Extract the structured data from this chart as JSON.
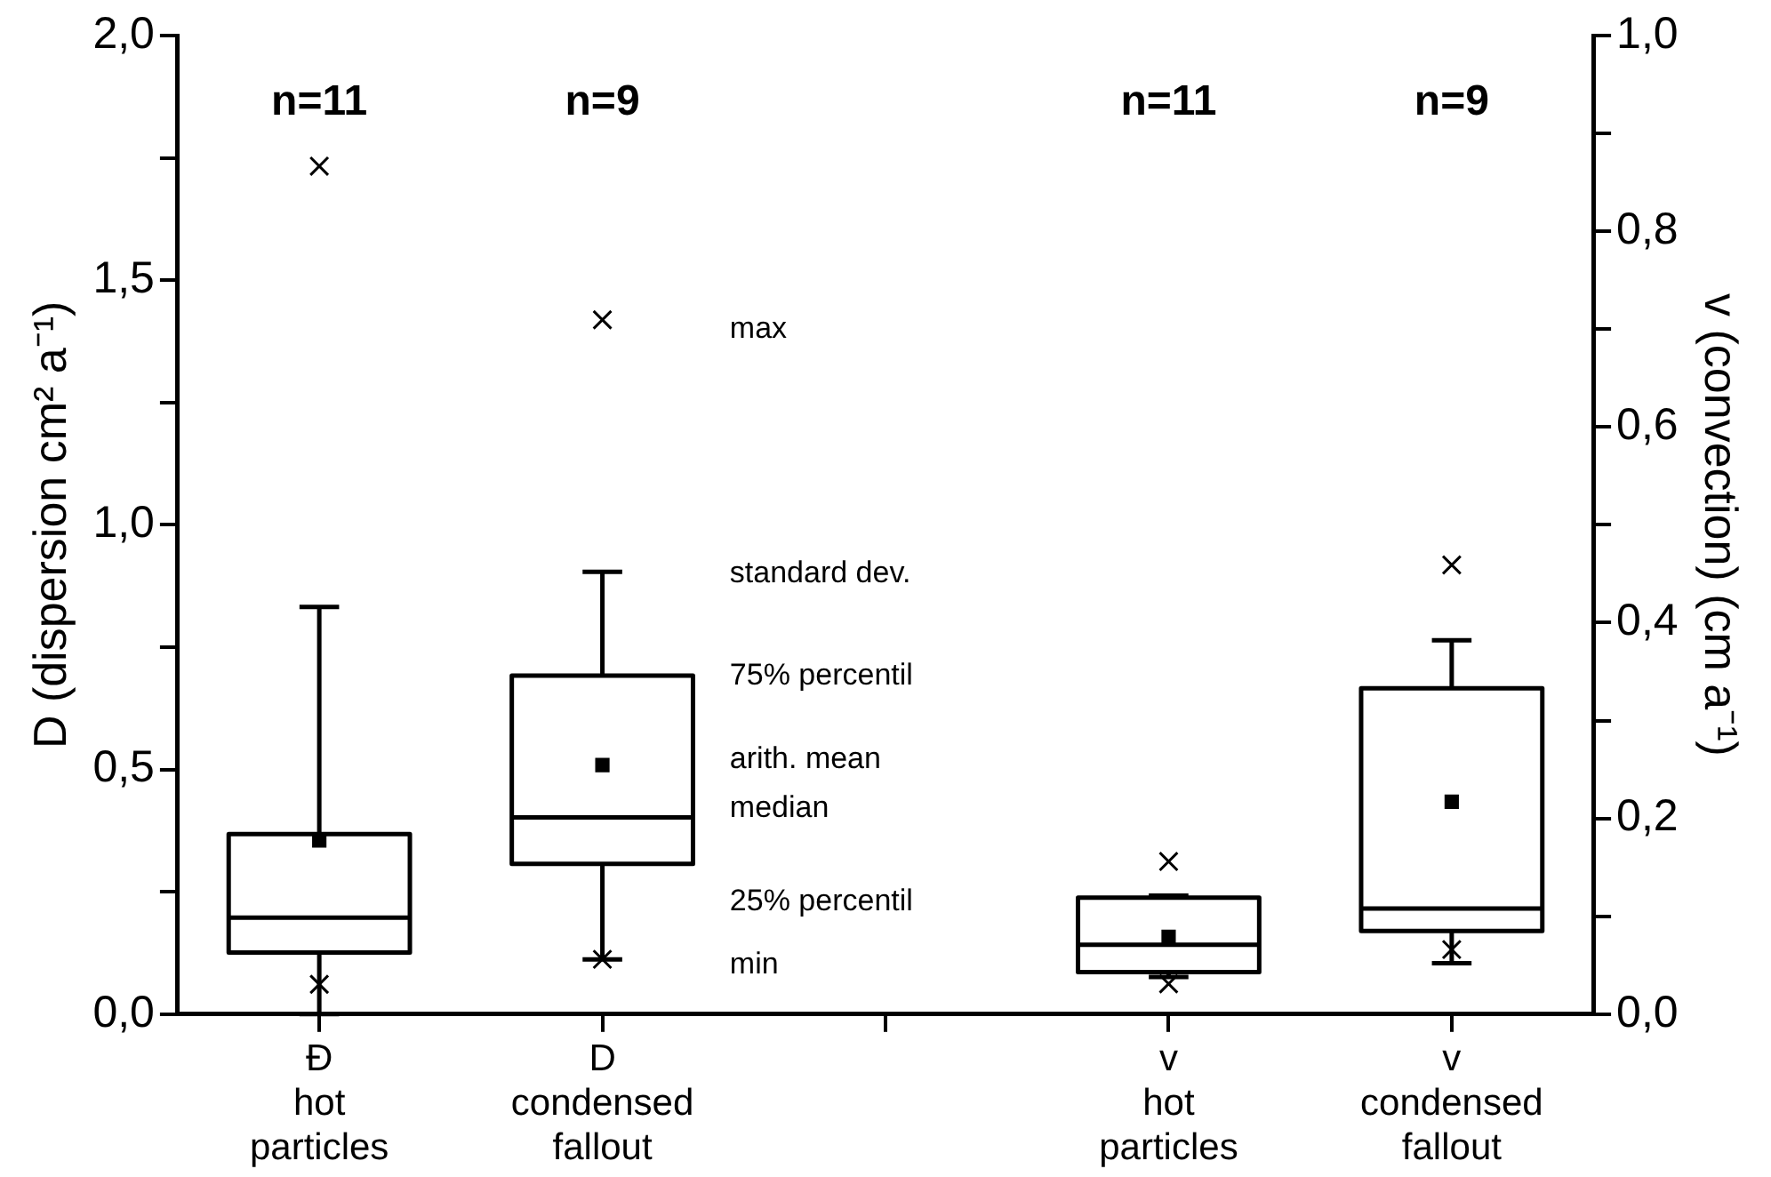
{
  "chart_data": {
    "type": "box",
    "ylabel": "D (dispersion cm² a⁻¹)",
    "y2label": "v (convection) (cm a⁻¹)",
    "categories": [
      "Ð hot particles",
      "D condensed fallout",
      null,
      "v hot particles",
      "v condensed fallout"
    ],
    "series": [
      {
        "color": "#000000",
        "axis": "y",
        "boxes": [
          {
            "low": 0,
            "q1": 0.126,
            "median": 0.197,
            "q3": 0.368,
            "high": 0.832,
            "mean": 0.355,
            "outliers": [
              1.733,
              0.061
            ]
          },
          {
            "low": 0.112,
            "q1": 0.307,
            "median": 0.402,
            "q3": 0.692,
            "high": 0.904,
            "mean": 0.509,
            "outliers": [
              1.419,
              0.112
            ]
          },
          null,
          null,
          null
        ]
      },
      {
        "color": "#000000",
        "axis": "y2",
        "boxes": [
          null,
          null,
          null,
          {
            "low": 0.038,
            "q1": 0.043,
            "median": 0.071,
            "q3": 0.119,
            "high": 0.121,
            "mean": 0.079,
            "outliers": [
              0.156,
              0.031
            ]
          },
          {
            "low": 0.052,
            "q1": 0.085,
            "median": 0.108,
            "q3": 0.333,
            "high": 0.382,
            "mean": 0.217,
            "outliers": [
              0.459,
              0.066
            ]
          }
        ]
      }
    ],
    "ylim": [
      0,
      2
    ],
    "yticks": [
      {
        "value": 0,
        "label": "0,0"
      },
      {
        "value": 0.25,
        "label": null
      },
      {
        "value": 0.5,
        "label": "0,5"
      },
      {
        "value": 0.75,
        "label": null
      },
      {
        "value": 1,
        "label": "1,0"
      },
      {
        "value": 1.25,
        "label": null
      },
      {
        "value": 1.5,
        "label": "1,5"
      },
      {
        "value": 1.75,
        "label": null
      },
      {
        "value": 2,
        "label": "2,0"
      }
    ],
    "y2lim": [
      0,
      1
    ],
    "y2ticks": [
      {
        "value": 0,
        "label": "0,0"
      },
      {
        "value": 0.1,
        "label": null
      },
      {
        "value": 0.2,
        "label": "0,2"
      },
      {
        "value": 0.3,
        "label": null
      },
      {
        "value": 0.4,
        "label": "0,4"
      },
      {
        "value": 0.5,
        "label": null
      },
      {
        "value": 0.6,
        "label": "0,6"
      },
      {
        "value": 0.7,
        "label": null
      },
      {
        "value": 0.8,
        "label": "0,8"
      },
      {
        "value": 0.9,
        "label": null
      },
      {
        "value": 1,
        "label": "1,0"
      }
    ],
    "marker": "square",
    "grid": false,
    "legend": false,
    "annotations": [
      "n=11",
      "n=9",
      "n=11",
      "n=9",
      "max",
      "standard dev.",
      "75% percentil",
      "arith. mean",
      "median",
      "25% percentil",
      "min"
    ]
  }
}
